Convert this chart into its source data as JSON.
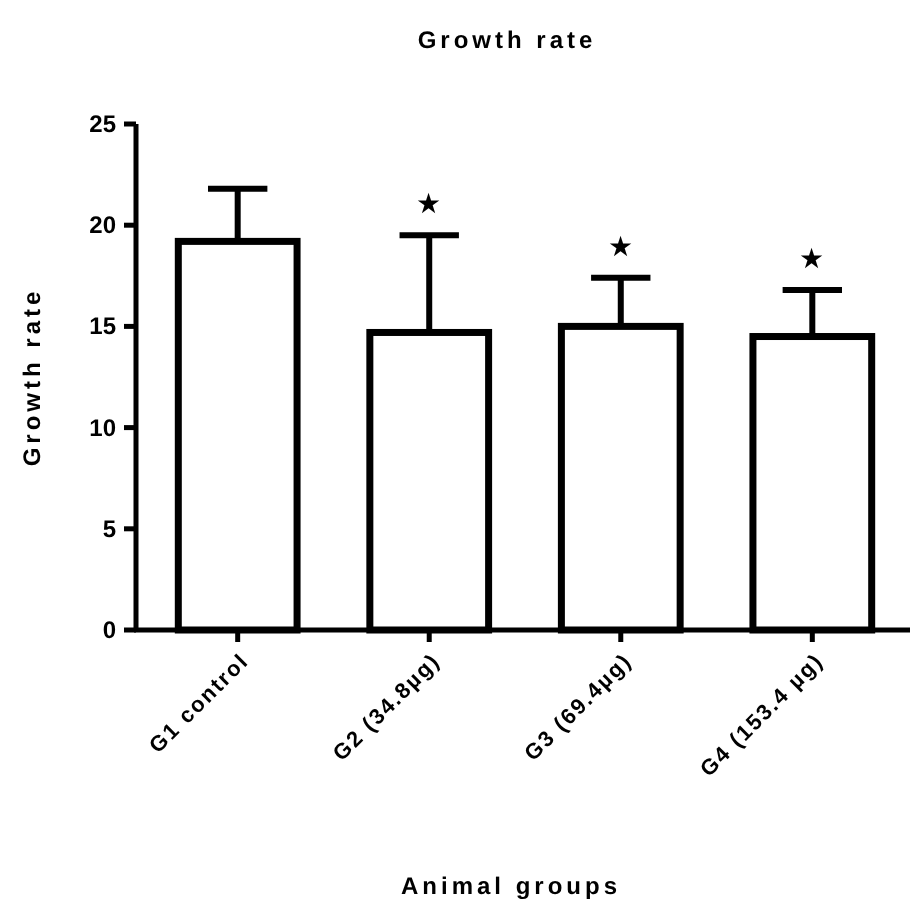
{
  "chart_data": {
    "type": "bar",
    "title": "Growth rate",
    "xlabel": "Animal groups",
    "ylabel": "Growth rate",
    "categories": [
      "G1 control",
      "G2 (34.8µg)",
      "G3 (69.4µg)",
      "G4 (153.4 µg)"
    ],
    "values": [
      19.2,
      14.7,
      15.0,
      14.5
    ],
    "errors": [
      [
        19.2,
        21.8
      ],
      [
        14.7,
        19.5
      ],
      [
        15.0,
        17.4
      ],
      [
        14.5,
        16.8
      ]
    ],
    "color": "#ffffff",
    "ylim": [
      0,
      25
    ],
    "yticks": [
      0,
      5,
      10,
      15,
      20,
      25
    ],
    "annotations": [
      "★",
      "★",
      "★"
    ]
  }
}
